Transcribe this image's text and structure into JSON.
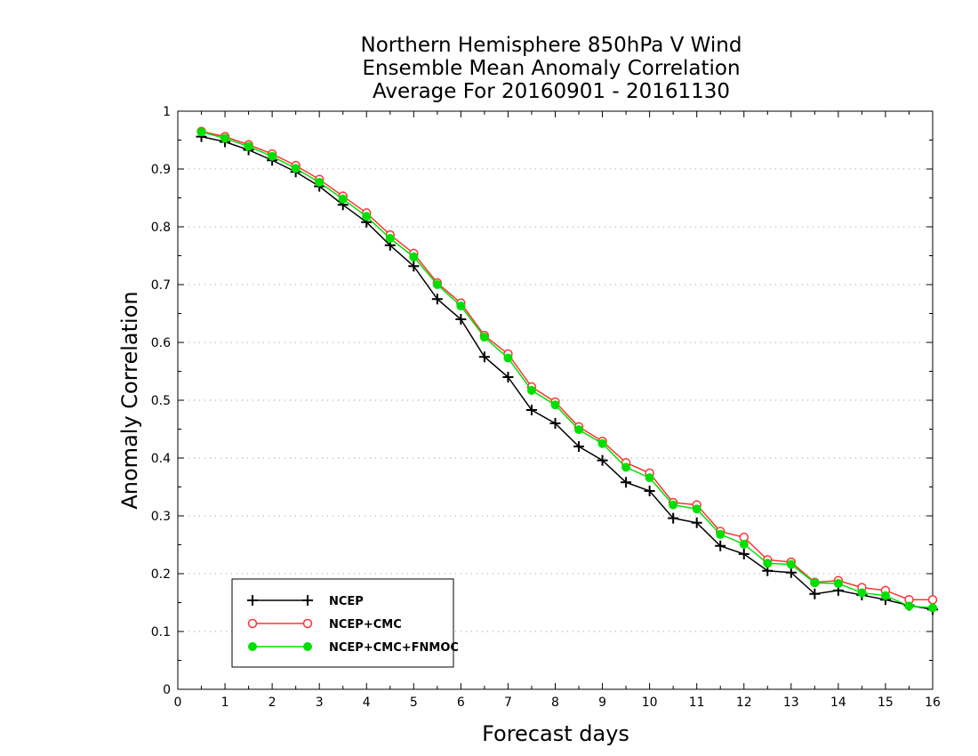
{
  "chart_data": {
    "type": "line",
    "title": [
      "Northern Hemisphere 850hPa V Wind",
      "Ensemble Mean Anomaly Correlation",
      "Average For 20160901 - 20161130"
    ],
    "xlabel": "Forecast days",
    "ylabel": "Anomaly Correlation",
    "xlim": [
      0,
      16
    ],
    "ylim": [
      0,
      1
    ],
    "x_ticks": [
      "0",
      "1",
      "2",
      "3",
      "4",
      "5",
      "6",
      "7",
      "8",
      "9",
      "10",
      "11",
      "12",
      "13",
      "14",
      "15",
      "16"
    ],
    "y_ticks": [
      "0",
      "0.1",
      "0.2",
      "0.3",
      "0.4",
      "0.5",
      "0.6",
      "0.7",
      "0.8",
      "0.9",
      "1"
    ],
    "grid": "horizontal-dotted",
    "legend_position": "bottom-left",
    "x": [
      0.5,
      1,
      1.5,
      2,
      2.5,
      3,
      3.5,
      4,
      4.5,
      5,
      5.5,
      6,
      6.5,
      7,
      7.5,
      8,
      8.5,
      9,
      9.5,
      10,
      10.5,
      11,
      11.5,
      12,
      12.5,
      13,
      13.5,
      14,
      14.5,
      15,
      15.5,
      16
    ],
    "series": [
      {
        "name": "NCEP",
        "color": "#000000",
        "marker": "plus",
        "values": [
          0.956,
          0.947,
          0.933,
          0.915,
          0.895,
          0.87,
          0.838,
          0.808,
          0.768,
          0.732,
          0.675,
          0.64,
          0.575,
          0.54,
          0.483,
          0.46,
          0.42,
          0.396,
          0.358,
          0.343,
          0.296,
          0.288,
          0.248,
          0.234,
          0.205,
          0.202,
          0.165,
          0.171,
          0.163,
          0.155,
          0.145,
          0.138
        ]
      },
      {
        "name": "NCEP+CMC",
        "color": "#ff3333",
        "marker": "open-circle",
        "values": [
          0.965,
          0.956,
          0.942,
          0.926,
          0.906,
          0.882,
          0.853,
          0.824,
          0.786,
          0.754,
          0.703,
          0.668,
          0.612,
          0.58,
          0.523,
          0.497,
          0.454,
          0.429,
          0.392,
          0.374,
          0.323,
          0.319,
          0.273,
          0.263,
          0.224,
          0.22,
          0.185,
          0.188,
          0.176,
          0.171,
          0.155,
          0.155
        ]
      },
      {
        "name": "NCEP+CMC+FNMOC",
        "color": "#00e000",
        "marker": "filled-circle",
        "values": [
          0.964,
          0.953,
          0.939,
          0.922,
          0.901,
          0.877,
          0.848,
          0.818,
          0.78,
          0.748,
          0.7,
          0.663,
          0.609,
          0.573,
          0.517,
          0.492,
          0.449,
          0.425,
          0.384,
          0.366,
          0.319,
          0.312,
          0.268,
          0.251,
          0.218,
          0.216,
          0.184,
          0.183,
          0.167,
          0.162,
          0.144,
          0.141
        ]
      }
    ]
  }
}
